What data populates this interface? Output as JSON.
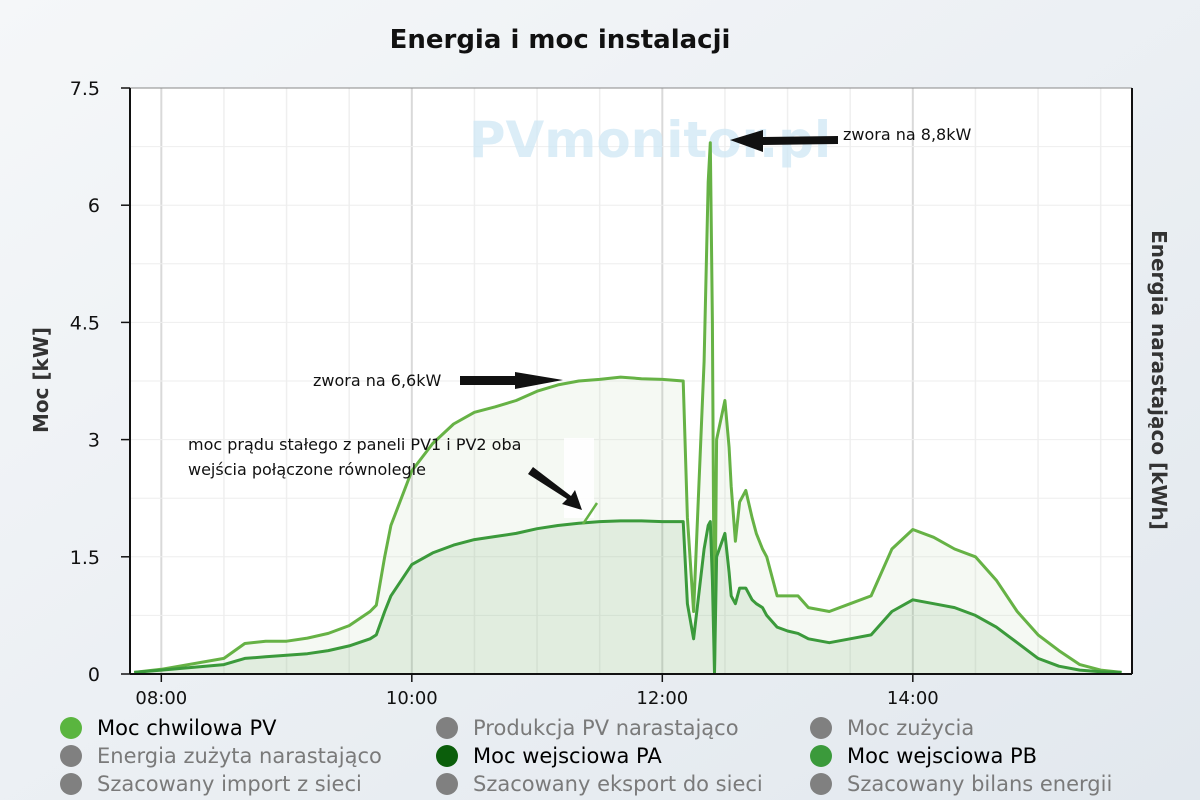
{
  "chart_data": {
    "type": "line",
    "title": "Energia i moc instalacji",
    "ylabel_left": "Moc [kW]",
    "ylabel_right": "Energia narastająco [kWh]",
    "watermark": "PVmonitor.pl",
    "x_ticks": [
      "08:00",
      "10:00",
      "12:00",
      "14:00"
    ],
    "y_ticks": [
      "0",
      "1.5",
      "3",
      "4.5",
      "6",
      "7.5"
    ],
    "x_range_hours": [
      7.75,
      15.75
    ],
    "ylim": [
      0,
      7.5
    ],
    "grid": true,
    "series": [
      {
        "name": "Moc chwilowa PV",
        "color": "#66b245",
        "x": [
          "07:47",
          "08:00",
          "08:30",
          "08:40",
          "08:50",
          "09:00",
          "09:10",
          "09:20",
          "09:30",
          "09:40",
          "09:43",
          "09:47",
          "09:50",
          "10:00",
          "10:10",
          "10:20",
          "10:30",
          "10:40",
          "10:50",
          "11:00",
          "11:10",
          "11:20",
          "11:30",
          "11:40",
          "11:50",
          "12:00",
          "12:10",
          "12:12",
          "12:15",
          "12:20",
          "12:22",
          "12:23",
          "12:24",
          "12:25",
          "12:26",
          "12:30",
          "12:32",
          "12:33",
          "12:35",
          "12:37",
          "12:40",
          "12:43",
          "12:45",
          "12:48",
          "12:50",
          "12:55",
          "13:00",
          "13:05",
          "13:10",
          "13:20",
          "13:30",
          "13:40",
          "13:50",
          "14:00",
          "14:10",
          "14:20",
          "14:30",
          "14:40",
          "14:50",
          "15:00",
          "15:10",
          "15:20",
          "15:30",
          "15:40"
        ],
        "values": [
          0.02,
          0.06,
          0.2,
          0.39,
          0.42,
          0.42,
          0.46,
          0.52,
          0.62,
          0.8,
          0.88,
          1.5,
          1.9,
          2.6,
          2.95,
          3.2,
          3.35,
          3.42,
          3.5,
          3.62,
          3.7,
          3.75,
          3.77,
          3.8,
          3.78,
          3.77,
          3.75,
          2.0,
          0.8,
          4.0,
          6.3,
          6.8,
          4.5,
          0.02,
          3.0,
          3.5,
          2.9,
          2.4,
          1.7,
          2.2,
          2.35,
          2.0,
          1.8,
          1.6,
          1.5,
          1.0,
          1.0,
          1.0,
          0.85,
          0.8,
          0.9,
          1.0,
          1.6,
          1.85,
          1.75,
          1.6,
          1.5,
          1.2,
          0.8,
          0.5,
          0.3,
          0.12,
          0.05,
          0.02
        ]
      },
      {
        "name": "Moc wejsciowa PB",
        "color": "#3b9a3b",
        "x": [
          "07:47",
          "08:00",
          "08:30",
          "08:40",
          "08:50",
          "09:00",
          "09:10",
          "09:20",
          "09:30",
          "09:40",
          "09:43",
          "09:47",
          "09:50",
          "10:00",
          "10:10",
          "10:20",
          "10:30",
          "10:40",
          "10:50",
          "11:00",
          "11:10",
          "11:20",
          "11:30",
          "11:40",
          "11:50",
          "12:00",
          "12:10",
          "12:12",
          "12:15",
          "12:20",
          "12:22",
          "12:23",
          "12:24",
          "12:25",
          "12:26",
          "12:30",
          "12:32",
          "12:33",
          "12:35",
          "12:37",
          "12:40",
          "12:43",
          "12:45",
          "12:48",
          "12:50",
          "12:55",
          "13:00",
          "13:05",
          "13:10",
          "13:20",
          "13:30",
          "13:40",
          "13:50",
          "14:00",
          "14:10",
          "14:20",
          "14:30",
          "14:40",
          "14:50",
          "15:00",
          "15:10",
          "15:20",
          "15:30",
          "15:40"
        ],
        "values": [
          0.02,
          0.05,
          0.12,
          0.2,
          0.22,
          0.24,
          0.26,
          0.3,
          0.36,
          0.45,
          0.5,
          0.8,
          1.0,
          1.4,
          1.55,
          1.65,
          1.72,
          1.76,
          1.8,
          1.86,
          1.9,
          1.93,
          1.95,
          1.96,
          1.96,
          1.95,
          1.95,
          0.9,
          0.45,
          1.6,
          1.9,
          1.95,
          1.2,
          0.02,
          1.5,
          1.8,
          1.3,
          1.0,
          0.9,
          1.1,
          1.1,
          0.95,
          0.9,
          0.85,
          0.75,
          0.6,
          0.55,
          0.52,
          0.45,
          0.4,
          0.45,
          0.5,
          0.8,
          0.95,
          0.9,
          0.85,
          0.75,
          0.6,
          0.4,
          0.2,
          0.1,
          0.05,
          0.03,
          0.02
        ]
      }
    ],
    "annotations": [
      {
        "text": "zwora na 8,8kW"
      },
      {
        "text": "zwora na 6,6kW"
      },
      {
        "text": "moc prądu stałego z paneli PV1 i PV2 oba"
      },
      {
        "text": "wejścia połączone równolegle"
      }
    ]
  },
  "legend": {
    "items": [
      {
        "label": "Moc chwilowa PV",
        "color": "#5ab53f",
        "active": true
      },
      {
        "label": "Produkcja PV narastająco",
        "color": "#808080",
        "active": false
      },
      {
        "label": "Moc zużycia",
        "color": "#808080",
        "active": false
      },
      {
        "label": "Energia zużyta narastająco",
        "color": "#808080",
        "active": false
      },
      {
        "label": "Moc wejsciowa PA",
        "color": "#0b5e0b",
        "active": true
      },
      {
        "label": "Moc wejsciowa PB",
        "color": "#3b9a3b",
        "active": true
      },
      {
        "label": "Szacowany import z sieci",
        "color": "#808080",
        "active": false
      },
      {
        "label": "Szacowany eksport do sieci",
        "color": "#808080",
        "active": false
      },
      {
        "label": "Szacowany bilans energii",
        "color": "#808080",
        "active": false
      }
    ]
  }
}
